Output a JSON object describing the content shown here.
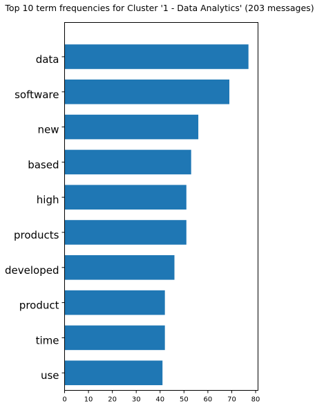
{
  "chart_data": {
    "type": "bar",
    "orientation": "horizontal",
    "title": "Top 10 term frequencies for Cluster '1 - Data Analytics' (203 messages)",
    "xlabel": "",
    "ylabel": "",
    "categories": [
      "data",
      "software",
      "new",
      "based",
      "high",
      "products",
      "developed",
      "product",
      "time",
      "use"
    ],
    "values": [
      77,
      69,
      56,
      53,
      51,
      51,
      46,
      42,
      42,
      41
    ],
    "xlim": [
      0,
      81
    ],
    "xticks": [
      "0",
      "10",
      "20",
      "30",
      "40",
      "50",
      "60",
      "70",
      "80"
    ],
    "grid": false,
    "legend": "none",
    "bar_color": "#1f77b4"
  }
}
